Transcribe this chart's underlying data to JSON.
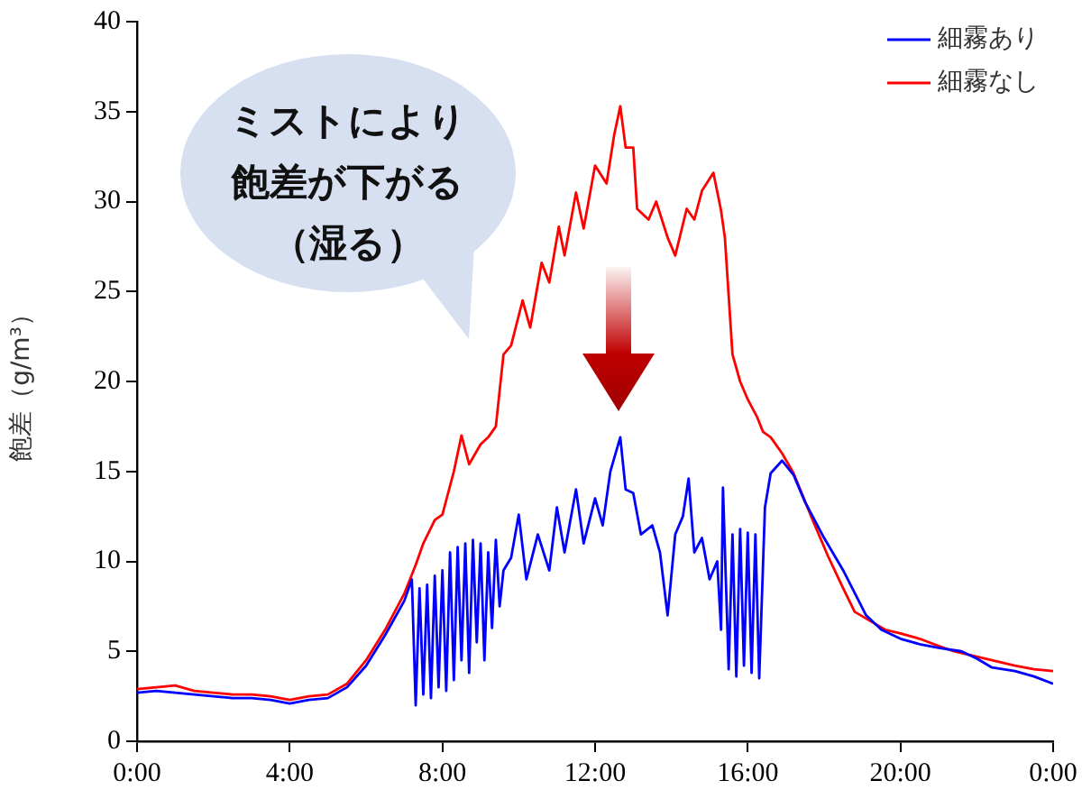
{
  "chart_data": {
    "type": "line",
    "ylabel": "飽差（g/m³）",
    "annotations": [
      "ミストにより",
      "飽差が下がる",
      "（湿る）"
    ],
    "xlim": [
      0,
      24
    ],
    "xticks": [
      {
        "value": 0,
        "label": "0:00"
      },
      {
        "value": 4,
        "label": "4:00"
      },
      {
        "value": 8,
        "label": "8:00"
      },
      {
        "value": 12,
        "label": "12:00"
      },
      {
        "value": 16,
        "label": "16:00"
      },
      {
        "value": 20,
        "label": "20:00"
      },
      {
        "value": 24,
        "label": "0:00"
      }
    ],
    "ylim": [
      0,
      40
    ],
    "yticks": [
      0,
      5,
      10,
      15,
      20,
      25,
      30,
      35,
      40
    ],
    "grid": false,
    "legend": "top right",
    "marker": "none",
    "line_style": "solid",
    "series": [
      {
        "name": "細霧あり",
        "color": "#0000ff",
        "x": [
          0,
          0.5,
          1,
          1.5,
          2,
          2.5,
          3,
          3.5,
          4,
          4.5,
          5,
          5.5,
          6,
          6.5,
          7,
          7.2,
          7.3,
          7.4,
          7.5,
          7.6,
          7.7,
          7.8,
          7.9,
          8.0,
          8.1,
          8.2,
          8.3,
          8.4,
          8.5,
          8.6,
          8.7,
          8.8,
          8.9,
          9.0,
          9.1,
          9.2,
          9.3,
          9.4,
          9.5,
          9.6,
          9.8,
          10.0,
          10.2,
          10.5,
          10.8,
          11.0,
          11.2,
          11.5,
          11.7,
          12.0,
          12.2,
          12.4,
          12.66,
          12.8,
          13.0,
          13.2,
          13.5,
          13.7,
          13.9,
          14.1,
          14.3,
          14.45,
          14.6,
          14.8,
          15.0,
          15.2,
          15.3,
          15.35,
          15.5,
          15.6,
          15.7,
          15.8,
          15.9,
          16.0,
          16.1,
          16.2,
          16.3,
          16.45,
          16.6,
          16.9,
          17.2,
          17.5,
          18.0,
          18.5,
          19.1,
          19.5,
          20.0,
          20.5,
          21.0,
          21.6,
          22.0,
          22.4,
          23.0,
          23.5,
          24.0
        ],
        "values": [
          2.7,
          2.8,
          2.7,
          2.6,
          2.5,
          2.4,
          2.4,
          2.3,
          2.1,
          2.3,
          2.4,
          3.0,
          4.2,
          5.9,
          7.8,
          9.0,
          2.0,
          8.5,
          2.6,
          8.7,
          2.4,
          9.2,
          3.0,
          9.5,
          2.8,
          10.5,
          3.4,
          10.8,
          4.5,
          11.0,
          3.8,
          11.2,
          5.5,
          11.0,
          4.5,
          10.5,
          6.3,
          11.2,
          7.5,
          9.5,
          10.2,
          12.6,
          9.0,
          11.5,
          9.5,
          13.0,
          10.5,
          14.0,
          11.0,
          13.5,
          12.0,
          15.0,
          16.9,
          14.0,
          13.8,
          11.5,
          12.0,
          10.5,
          7.0,
          11.5,
          12.5,
          14.6,
          10.5,
          11.3,
          9.0,
          10.0,
          6.2,
          14.1,
          4.0,
          11.5,
          3.6,
          11.8,
          4.2,
          11.6,
          3.8,
          11.5,
          3.5,
          13.0,
          14.9,
          15.6,
          14.8,
          13.3,
          11.3,
          9.5,
          7.0,
          6.2,
          5.7,
          5.4,
          5.2,
          5.0,
          4.6,
          4.1,
          3.9,
          3.6,
          3.2
        ]
      },
      {
        "name": "細霧なし",
        "color": "#ff0000",
        "x": [
          0,
          0.5,
          1,
          1.5,
          2,
          2.5,
          3,
          3.5,
          4,
          4.5,
          5,
          5.5,
          6,
          6.5,
          7,
          7.3,
          7.5,
          7.8,
          8.0,
          8.3,
          8.5,
          8.7,
          9.0,
          9.2,
          9.4,
          9.6,
          9.8,
          10.1,
          10.3,
          10.6,
          10.8,
          11.05,
          11.2,
          11.5,
          11.7,
          12.0,
          12.3,
          12.5,
          12.66,
          12.8,
          13.0,
          13.1,
          13.4,
          13.6,
          13.9,
          14.1,
          14.4,
          14.6,
          14.8,
          15.1,
          15.3,
          15.4,
          15.6,
          15.8,
          16.0,
          16.25,
          16.4,
          16.6,
          16.9,
          17.2,
          17.7,
          18.1,
          18.5,
          18.8,
          19.2,
          19.6,
          20.0,
          20.5,
          21.0,
          21.4,
          22.0,
          22.4,
          23.0,
          23.5,
          24.0
        ],
        "values": [
          2.9,
          3.0,
          3.1,
          2.8,
          2.7,
          2.6,
          2.6,
          2.5,
          2.3,
          2.5,
          2.6,
          3.2,
          4.5,
          6.2,
          8.2,
          9.8,
          11.0,
          12.3,
          12.6,
          15.0,
          17.0,
          15.4,
          16.5,
          16.9,
          17.5,
          21.5,
          22.0,
          24.5,
          23.0,
          26.6,
          25.5,
          28.6,
          27.0,
          30.5,
          28.5,
          32.0,
          31.0,
          33.7,
          35.3,
          33.0,
          33.0,
          29.6,
          29.0,
          30.0,
          28.0,
          27.0,
          29.6,
          29.0,
          30.6,
          31.6,
          29.5,
          28.0,
          21.5,
          20.0,
          19.0,
          18.0,
          17.2,
          16.9,
          16.0,
          14.9,
          12.3,
          10.3,
          8.5,
          7.2,
          6.7,
          6.2,
          6.0,
          5.7,
          5.3,
          5.0,
          4.7,
          4.5,
          4.2,
          4.0,
          3.9
        ]
      }
    ]
  }
}
